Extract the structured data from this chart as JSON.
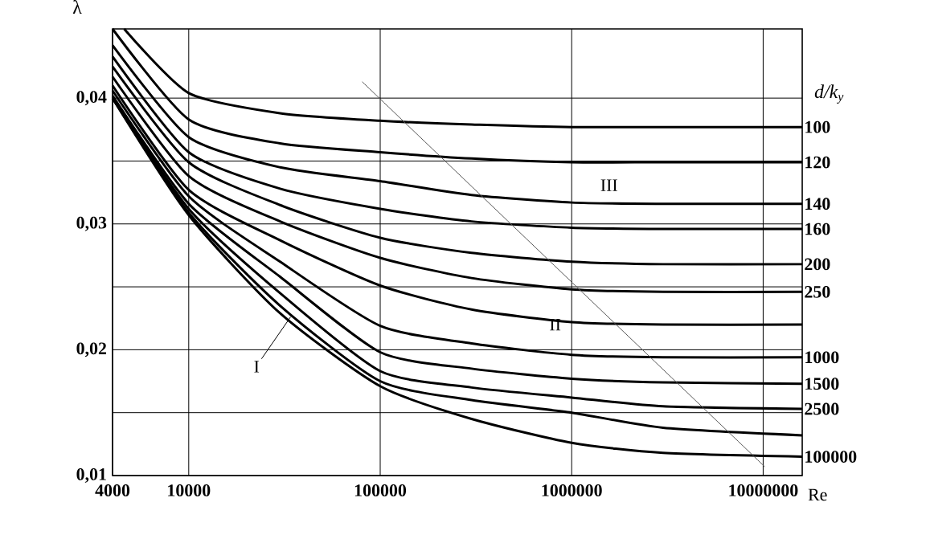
{
  "chart_data": {
    "type": "line",
    "xlabel": "Re",
    "ylabel": "λ",
    "legend_title": "d/k$_{y}$",
    "log": "x",
    "grid": true,
    "xlim": [
      4000,
      16000000
    ],
    "ylim": [
      0.01,
      0.0455
    ],
    "xticks": [
      4000,
      10000,
      100000,
      1000000,
      10000000
    ],
    "yticks": [
      {
        "value": 0.01,
        "label": "0,01"
      },
      {
        "value": 0.015,
        "label": null
      },
      {
        "value": 0.02,
        "label": "0,02"
      },
      {
        "value": 0.025,
        "label": null
      },
      {
        "value": 0.03,
        "label": "0,03"
      },
      {
        "value": 0.035,
        "label": null
      },
      {
        "value": 0.04,
        "label": "0,04"
      }
    ],
    "series": [
      {
        "name": "100",
        "color": "#000000",
        "x": [
          4600,
          10000,
          30000,
          100000,
          300000,
          1000000,
          16000000
        ],
        "values": [
          0.0455,
          0.0404,
          0.0388,
          0.0382,
          0.0379,
          0.0377,
          0.0377
        ]
      },
      {
        "name": "120",
        "color": "#000000",
        "x": [
          4000,
          10000,
          30000,
          100000,
          300000,
          1000000,
          3000000,
          16000000
        ],
        "values": [
          0.0455,
          0.0383,
          0.0364,
          0.0357,
          0.0352,
          0.0349,
          0.0349,
          0.0349
        ]
      },
      {
        "name": "140",
        "color": "#000000",
        "x": [
          4000,
          10000,
          30000,
          100000,
          300000,
          1000000,
          3000000,
          16000000
        ],
        "values": [
          0.0442,
          0.0369,
          0.0345,
          0.0334,
          0.0323,
          0.0317,
          0.0316,
          0.0316
        ]
      },
      {
        "name": "160",
        "color": "#000000",
        "x": [
          4000,
          10000,
          30000,
          100000,
          300000,
          1000000,
          3000000,
          16000000
        ],
        "values": [
          0.0433,
          0.0357,
          0.0328,
          0.0312,
          0.0302,
          0.0297,
          0.0296,
          0.0296
        ]
      },
      {
        "name": "200",
        "color": "#000000",
        "x": [
          4000,
          10000,
          30000,
          100000,
          300000,
          1000000,
          3000000,
          16000000
        ],
        "values": [
          0.0425,
          0.0349,
          0.0315,
          0.0289,
          0.0277,
          0.027,
          0.0268,
          0.0268
        ]
      },
      {
        "name": "250",
        "color": "#000000",
        "x": [
          4000,
          10000,
          30000,
          100000,
          300000,
          1000000,
          3000000,
          16000000
        ],
        "values": [
          0.0417,
          0.0338,
          0.0302,
          0.0273,
          0.0257,
          0.0248,
          0.0246,
          0.0246
        ]
      },
      {
        "color": "#000000",
        "x": [
          4000,
          10000,
          30000,
          100000,
          300000,
          1000000,
          3000000,
          16000000
        ],
        "values": [
          0.041,
          0.0327,
          0.0287,
          0.0251,
          0.0232,
          0.0222,
          0.022,
          0.022
        ]
      },
      {
        "name": "1000",
        "color": "#000000",
        "x": [
          4000,
          10000,
          30000,
          100000,
          300000,
          1000000,
          3000000,
          16000000
        ],
        "values": [
          0.0406,
          0.0322,
          0.027,
          0.0219,
          0.0205,
          0.0196,
          0.0194,
          0.0194
        ]
      },
      {
        "name": "1500",
        "color": "#000000",
        "x": [
          4000,
          10000,
          30000,
          100000,
          300000,
          1000000,
          3000000,
          16000000
        ],
        "values": [
          0.0402,
          0.0316,
          0.0258,
          0.0198,
          0.0185,
          0.0177,
          0.0174,
          0.0173
        ]
      },
      {
        "name": "2500",
        "color": "#000000",
        "x": [
          4000,
          10000,
          30000,
          100000,
          300000,
          1000000,
          3000000,
          16000000
        ],
        "values": [
          0.0401,
          0.0312,
          0.0245,
          0.0183,
          0.017,
          0.0162,
          0.0155,
          0.0153
        ]
      },
      {
        "color": "#000000",
        "x": [
          4000,
          10000,
          30000,
          100000,
          300000,
          1000000,
          3000000,
          16000000
        ],
        "values": [
          0.04,
          0.0309,
          0.0235,
          0.0175,
          0.016,
          0.015,
          0.0138,
          0.0132
        ]
      },
      {
        "name": "100000",
        "color": "#000000",
        "x": [
          4000,
          10000,
          30000,
          100000,
          300000,
          1000000,
          3000000,
          16000000
        ],
        "values": [
          0.04,
          0.0307,
          0.0229,
          0.0171,
          0.0145,
          0.0126,
          0.0118,
          0.0115
        ]
      },
      {
        "color": "#555555",
        "x": [
          80500,
          10200000
        ],
        "values": [
          0.0413,
          0.0107
        ]
      }
    ],
    "annotations": [
      {
        "text": "I",
        "x": 34000,
        "y": 0.0226
      },
      {
        "text": "II",
        "x": 820000,
        "y": 0.022
      },
      "III"
    ]
  }
}
